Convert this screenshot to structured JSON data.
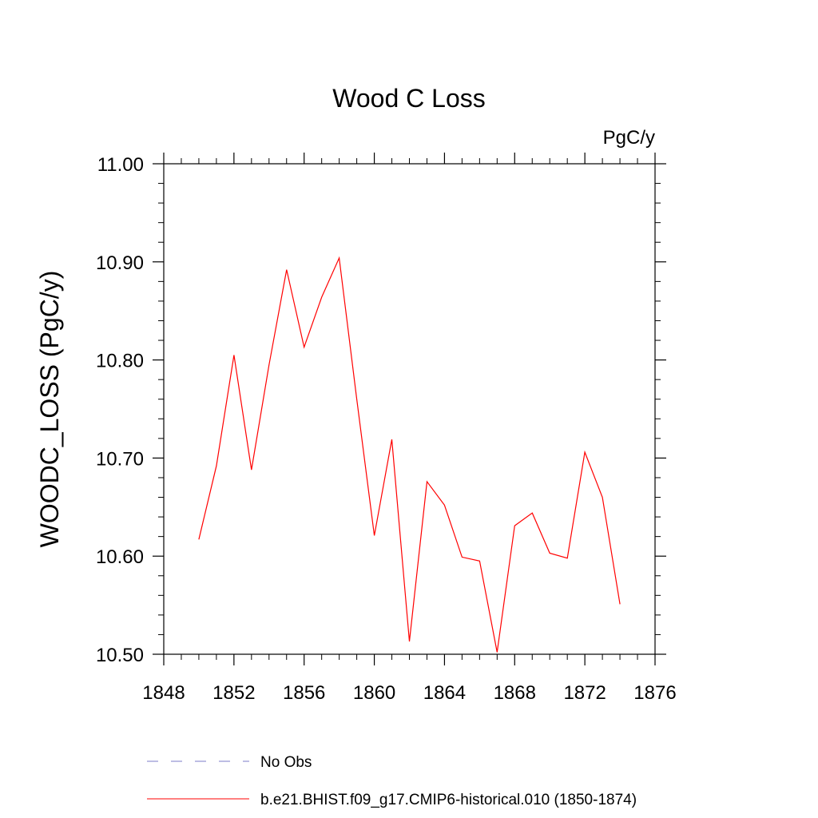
{
  "chart_data": {
    "type": "line",
    "title": "Wood C Loss",
    "units": "PgC/y",
    "ylabel": "WOODC_LOSS  (PgC/y)",
    "xlabel": "",
    "xlim": [
      1848,
      1876
    ],
    "ylim": [
      10.5,
      11.0
    ],
    "x_ticks": [
      1848,
      1852,
      1856,
      1860,
      1864,
      1868,
      1872,
      1876
    ],
    "y_ticks": [
      10.5,
      10.6,
      10.7,
      10.8,
      10.9,
      11.0
    ],
    "y_tick_labels": [
      "10.50",
      "10.60",
      "10.70",
      "10.80",
      "10.90",
      "11.00"
    ],
    "x_tick_labels": [
      "1848",
      "1852",
      "1856",
      "1860",
      "1864",
      "1868",
      "1872",
      "1876"
    ],
    "grid": false,
    "legend_position": "bottom",
    "series": [
      {
        "name": "b.e21.BHIST.f09_g17.CMIP6-historical.010 (1850-1874)",
        "color": "#ff0000",
        "style": "solid",
        "x": [
          1850,
          1851,
          1852,
          1853,
          1854,
          1855,
          1856,
          1857,
          1858,
          1859,
          1860,
          1861,
          1862,
          1863,
          1864,
          1865,
          1866,
          1867,
          1868,
          1869,
          1870,
          1871,
          1872,
          1873,
          1874
        ],
        "values": [
          10.617,
          10.692,
          10.805,
          10.688,
          10.795,
          10.892,
          10.813,
          10.864,
          10.904,
          10.76,
          10.621,
          10.719,
          10.513,
          10.676,
          10.652,
          10.599,
          10.595,
          10.502,
          10.631,
          10.644,
          10.603,
          10.598,
          10.706,
          10.66,
          10.551
        ]
      }
    ],
    "legend": [
      {
        "label": "No Obs",
        "color": "#7b7bc8",
        "style": "dashed"
      },
      {
        "label": "b.e21.BHIST.f09_g17.CMIP6-historical.010 (1850-1874)",
        "color": "#ff0000",
        "style": "solid"
      }
    ]
  }
}
